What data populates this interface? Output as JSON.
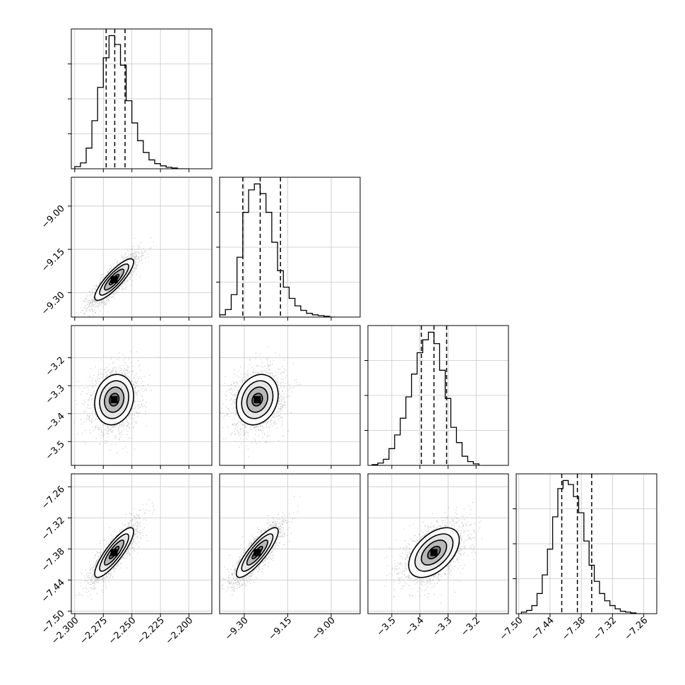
{
  "chart_data": {
    "type": "corner",
    "grid": true,
    "colors": {
      "hist": "#000000",
      "points": "#9e9e9e",
      "contour": "#000000"
    },
    "parameters": [
      {
        "range": [
          -2.303,
          -2.18
        ],
        "ticks": [
          -2.3,
          -2.275,
          -2.25,
          -2.225,
          -2.2
        ],
        "tick_labels": [
          "−2.300",
          "−2.275",
          "−2.250",
          "−2.225",
          "−2.200"
        ],
        "quantiles": [
          -2.2725,
          -2.265,
          -2.256
        ],
        "hist_edges": [
          -2.3,
          -2.295,
          -2.29,
          -2.285,
          -2.28,
          -2.275,
          -2.27,
          -2.265,
          -2.26,
          -2.255,
          -2.25,
          -2.245,
          -2.24,
          -2.235,
          -2.23,
          -2.225,
          -2.22,
          -2.215,
          -2.21,
          -2.205,
          -2.2
        ],
        "hist_counts": [
          3,
          8,
          28,
          65,
          110,
          150,
          180,
          168,
          140,
          92,
          62,
          38,
          22,
          12,
          7,
          4,
          2,
          1,
          0,
          0
        ],
        "mode": -2.2655,
        "sd": 0.0085
      },
      {
        "range": [
          -9.385,
          -8.9
        ],
        "ticks": [
          -9.3,
          -9.15,
          -9.0
        ],
        "tick_labels": [
          "−9.30",
          "−9.15",
          "−9.00"
        ],
        "quantiles": [
          -9.305,
          -9.245,
          -9.175
        ],
        "hist_edges": [
          -9.385,
          -9.365,
          -9.345,
          -9.325,
          -9.305,
          -9.285,
          -9.265,
          -9.245,
          -9.225,
          -9.205,
          -9.185,
          -9.165,
          -9.145,
          -9.125,
          -9.105,
          -9.085,
          -9.065,
          -9.045,
          -9.025,
          -9.005,
          -8.985
        ],
        "hist_counts": [
          3,
          10,
          30,
          80,
          140,
          170,
          178,
          165,
          140,
          100,
          62,
          40,
          25,
          15,
          9,
          5,
          3,
          2,
          1,
          0
        ],
        "mode": -9.255,
        "sd": 0.036
      },
      {
        "range": [
          -3.585,
          -3.085
        ],
        "ticks": [
          -3.5,
          -3.4,
          -3.3,
          -3.2
        ],
        "tick_labels": [
          "−3.5",
          "−3.4",
          "−3.3",
          "−3.2"
        ],
        "quantiles": [
          -3.395,
          -3.35,
          -3.305
        ],
        "hist_edges": [
          -3.57,
          -3.55,
          -3.53,
          -3.51,
          -3.49,
          -3.47,
          -3.45,
          -3.43,
          -3.41,
          -3.39,
          -3.37,
          -3.35,
          -3.33,
          -3.31,
          -3.29,
          -3.27,
          -3.25,
          -3.23,
          -3.21,
          -3.19
        ],
        "hist_counts": [
          1,
          3,
          8,
          22,
          40,
          62,
          90,
          120,
          148,
          165,
          175,
          160,
          125,
          88,
          50,
          30,
          12,
          5,
          2
        ],
        "mode": -3.35,
        "sd": 0.045
      },
      {
        "range": [
          -7.505,
          -7.235
        ],
        "ticks": [
          -7.5,
          -7.44,
          -7.38,
          -7.32,
          -7.26
        ],
        "tick_labels": [
          "−7.50",
          "−7.44",
          "−7.38",
          "−7.32",
          "−7.26"
        ],
        "quantiles": [
          -7.4175,
          -7.3875,
          -7.36
        ],
        "hist_edges": [
          -7.495,
          -7.485,
          -7.475,
          -7.465,
          -7.455,
          -7.445,
          -7.435,
          -7.425,
          -7.415,
          -7.405,
          -7.395,
          -7.385,
          -7.375,
          -7.365,
          -7.355,
          -7.345,
          -7.335,
          -7.325,
          -7.315,
          -7.305,
          -7.295,
          -7.285,
          -7.275,
          -7.265
        ],
        "hist_counts": [
          2,
          4,
          10,
          25,
          48,
          80,
          120,
          155,
          165,
          160,
          145,
          125,
          90,
          60,
          40,
          25,
          16,
          10,
          6,
          3,
          2,
          1,
          0
        ],
        "mode": -7.387,
        "sd": 0.024
      }
    ],
    "correlations": [
      [
        1,
        0.85,
        0.15,
        0.85
      ],
      [
        0.85,
        1,
        0.2,
        0.85
      ],
      [
        0.15,
        0.2,
        1,
        0.5
      ],
      [
        0.85,
        0.85,
        0.5,
        1
      ]
    ]
  }
}
